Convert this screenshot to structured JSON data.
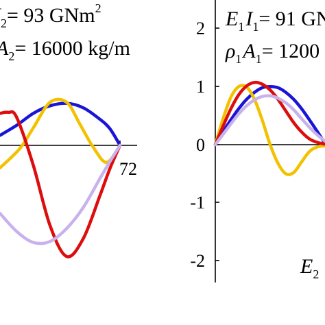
{
  "chart_data": [
    {
      "panel": "left",
      "type": "line",
      "x_tick_labels": [
        "72"
      ],
      "annotations": [
        {
          "symbol": "I",
          "sub": "2",
          "rest": "= 93 GNm",
          "sup": "2"
        },
        {
          "symbol": "A",
          "sub": "2",
          "rest": "= 16000 kg/m"
        }
      ],
      "series": [
        {
          "color": "#1a14d6",
          "x": [
            0,
            10,
            20,
            30,
            40,
            50,
            60,
            66,
            72
          ],
          "y": [
            0.2,
            0.4,
            0.64,
            0.79,
            0.84,
            0.75,
            0.52,
            0.33,
            0
          ]
        },
        {
          "color": "#f2c200",
          "x": [
            0,
            12,
            20,
            30,
            40,
            48,
            56,
            64,
            72
          ],
          "y": [
            -0.45,
            -0.06,
            0.35,
            0.86,
            0.86,
            0.42,
            -0.04,
            -0.34,
            0
          ]
        },
        {
          "color": "#dd0d0d",
          "x": [
            0,
            5,
            10,
            20,
            30,
            40,
            50,
            60,
            66,
            72
          ],
          "y": [
            0.64,
            0.66,
            0.56,
            -0.4,
            -1.6,
            -2.22,
            -1.86,
            -1.0,
            -0.46,
            0
          ]
        },
        {
          "color": "#c8b2ec",
          "x": [
            0,
            10,
            20,
            30,
            40,
            50,
            60,
            66,
            72
          ],
          "y": [
            -1.36,
            -1.72,
            -1.94,
            -1.92,
            -1.66,
            -1.24,
            -0.66,
            -0.32,
            0
          ]
        }
      ]
    },
    {
      "panel": "right",
      "type": "line",
      "y_tick_labels": [
        "2",
        "1",
        "0",
        "-1",
        "-2"
      ],
      "ylim": [
        -2.35,
        2.45
      ],
      "annotations": [
        {
          "symbol": "E",
          "sub": "1",
          "symbol2": "I",
          "sub2": "1",
          "rest": "= 91 GN"
        },
        {
          "symbol": "ρ",
          "sub": "1",
          "symbol2": "A",
          "sub2": "1",
          "rest": "= 1200"
        },
        {
          "symbol": "E",
          "sub": "2",
          "rest": ""
        }
      ],
      "series": [
        {
          "color": "#1a14d6",
          "x": [
            0,
            0.05,
            0.1,
            0.15,
            0.2,
            0.25,
            0.3,
            0.35,
            0.4,
            0.45,
            0.5,
            0.55,
            0.6,
            0.65,
            0.7
          ],
          "y": [
            0,
            0.22,
            0.43,
            0.62,
            0.78,
            0.9,
            0.98,
            1.0,
            0.98,
            0.9,
            0.78,
            0.62,
            0.43,
            0.23,
            0.02
          ]
        },
        {
          "color": "#f2c200",
          "x": [
            0,
            0.05,
            0.1,
            0.15,
            0.2,
            0.25,
            0.3,
            0.35,
            0.4,
            0.45,
            0.5,
            0.55,
            0.6,
            0.65,
            0.7
          ],
          "y": [
            0,
            0.45,
            0.82,
            1.0,
            0.99,
            0.78,
            0.42,
            0.0,
            -0.32,
            -0.5,
            -0.48,
            -0.3,
            -0.12,
            -0.04,
            -0.02
          ]
        },
        {
          "color": "#dd0d0d",
          "x": [
            0,
            0.05,
            0.1,
            0.15,
            0.2,
            0.25,
            0.3,
            0.35,
            0.4,
            0.45,
            0.5,
            0.55,
            0.6,
            0.65,
            0.7
          ],
          "y": [
            0,
            0.32,
            0.62,
            0.86,
            1.01,
            1.07,
            1.04,
            0.94,
            0.78,
            0.58,
            0.38,
            0.22,
            0.1,
            0.04,
            0.01
          ]
        },
        {
          "color": "#c8b2ec",
          "x": [
            0,
            0.05,
            0.1,
            0.15,
            0.2,
            0.25,
            0.3,
            0.35,
            0.4,
            0.45,
            0.5,
            0.55,
            0.6,
            0.65,
            0.7
          ],
          "y": [
            0,
            0.18,
            0.36,
            0.53,
            0.67,
            0.77,
            0.83,
            0.84,
            0.8,
            0.72,
            0.6,
            0.45,
            0.3,
            0.17,
            0.06
          ]
        }
      ]
    }
  ]
}
